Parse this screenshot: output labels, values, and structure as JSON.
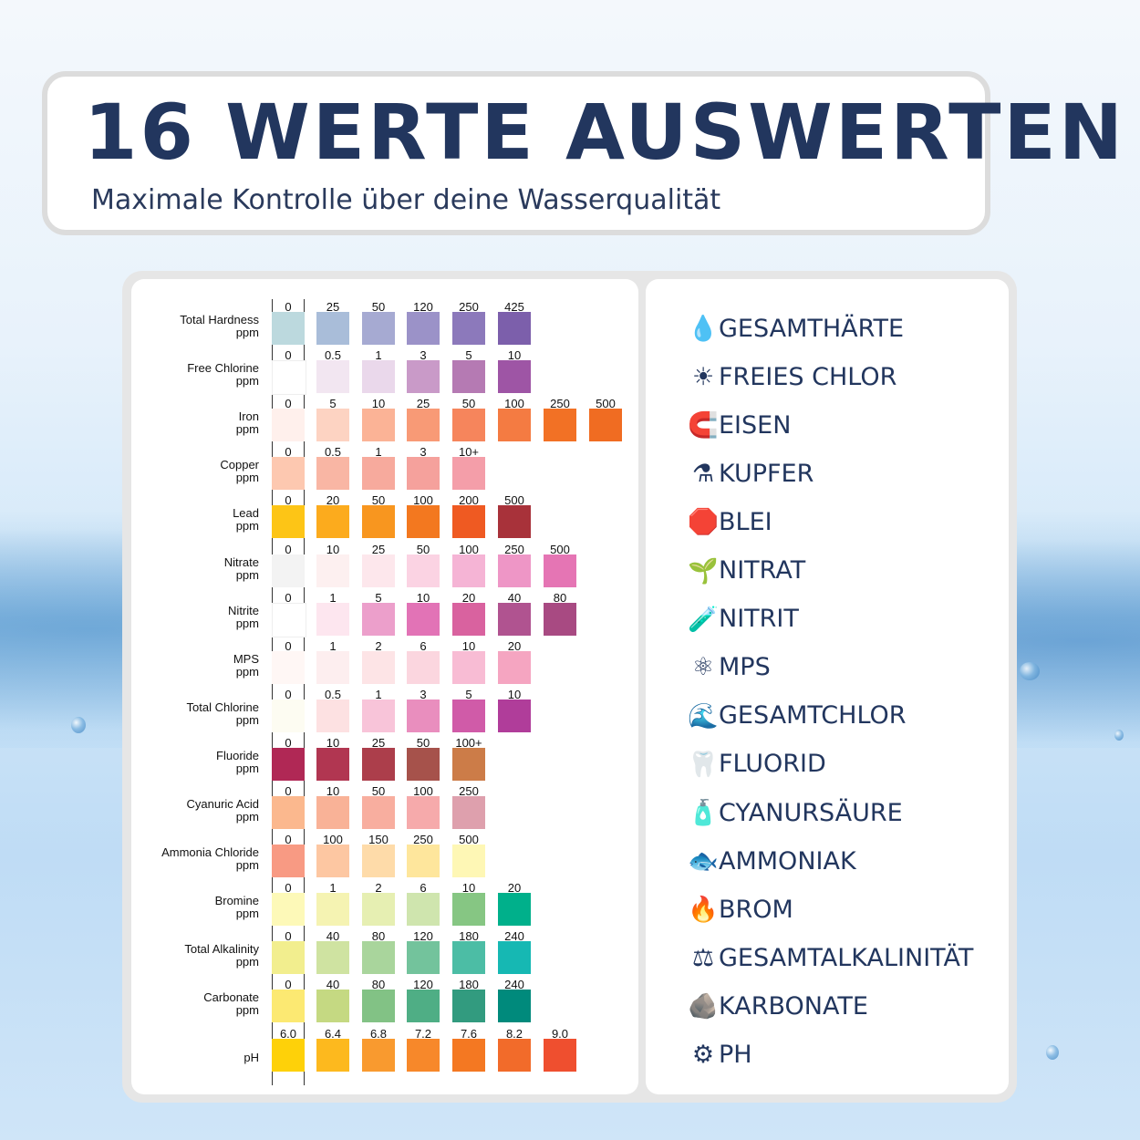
{
  "header": {
    "title": "16 WERTE AUSWERTEN",
    "subtitle": "Maximale Kontrolle über deine Wasserqualität"
  },
  "test_rows": [
    {
      "name": "Total Hardness",
      "unit": "ppm",
      "values": [
        "0",
        "25",
        "50",
        "120",
        "250",
        "425"
      ],
      "colors": [
        "#bcd9de",
        "#a9bdd9",
        "#a6aad2",
        "#9b92c8",
        "#8c79bb",
        "#7c5fab"
      ]
    },
    {
      "name": "Free Chlorine",
      "unit": "ppm",
      "values": [
        "0",
        "0.5",
        "1",
        "3",
        "5",
        "10"
      ],
      "colors": [
        "#ffffff",
        "#f2e6f1",
        "#ead8eb",
        "#c99ac8",
        "#b57ab3",
        "#9e55a5"
      ]
    },
    {
      "name": "Iron",
      "unit": "ppm",
      "values": [
        "0",
        "5",
        "10",
        "25",
        "50",
        "100",
        "250",
        "500"
      ],
      "colors": [
        "#fff0ec",
        "#fdd3c2",
        "#fbb396",
        "#f89a76",
        "#f6855c",
        "#f47b42",
        "#f27125",
        "#f06c22"
      ]
    },
    {
      "name": "Copper",
      "unit": "ppm",
      "values": [
        "0",
        "0.5",
        "1",
        "3",
        "10+"
      ],
      "colors": [
        "#fdc8b0",
        "#f9b6a4",
        "#f7aa9d",
        "#f5a19c",
        "#f49ea9"
      ]
    },
    {
      "name": "Lead",
      "unit": "ppm",
      "values": [
        "0",
        "20",
        "50",
        "100",
        "200",
        "500"
      ],
      "colors": [
        "#fdc516",
        "#fcab1d",
        "#f8961f",
        "#f3781f",
        "#ef5a22",
        "#a8323a"
      ]
    },
    {
      "name": "Nitrate",
      "unit": "ppm",
      "values": [
        "0",
        "10",
        "25",
        "50",
        "100",
        "250",
        "500"
      ],
      "colors": [
        "#f3f3f3",
        "#fdf0f0",
        "#fde7ec",
        "#fbd3e3",
        "#f5b4d5",
        "#ee96c6",
        "#e575b4"
      ]
    },
    {
      "name": "Nitrite",
      "unit": "ppm",
      "values": [
        "0",
        "1",
        "5",
        "10",
        "20",
        "40",
        "80"
      ],
      "colors": [
        "#ffffff",
        "#fde6ef",
        "#ec9fcb",
        "#e273b6",
        "#d9629f",
        "#b05390",
        "#a84a82"
      ]
    },
    {
      "name": "MPS",
      "unit": "ppm",
      "values": [
        "0",
        "1",
        "2",
        "6",
        "10",
        "20"
      ],
      "colors": [
        "#fff7f5",
        "#fdeeef",
        "#fde4e6",
        "#fbd6df",
        "#f8bcd4",
        "#f5a5c1"
      ]
    },
    {
      "name": "Total Chlorine",
      "unit": "ppm",
      "values": [
        "0",
        "0.5",
        "1",
        "3",
        "5",
        "10"
      ],
      "colors": [
        "#fdfcf2",
        "#fde1e2",
        "#f8c4d9",
        "#e98ebe",
        "#d05ba8",
        "#b03d9a"
      ]
    },
    {
      "name": "Fluoride",
      "unit": "ppm",
      "values": [
        "0",
        "10",
        "25",
        "50",
        "100+"
      ],
      "colors": [
        "#b02855",
        "#b13651",
        "#ac3e4b",
        "#a6524b",
        "#cc7c48"
      ]
    },
    {
      "name": "Cyanuric Acid",
      "unit": "ppm",
      "values": [
        "0",
        "10",
        "50",
        "100",
        "250"
      ],
      "colors": [
        "#fbb88e",
        "#f9b297",
        "#f8ae9f",
        "#f6aaab",
        "#dea0ad"
      ]
    },
    {
      "name": "Ammonia Chloride",
      "unit": "ppm",
      "values": [
        "0",
        "100",
        "150",
        "250",
        "500"
      ],
      "colors": [
        "#f89a83",
        "#fdc7a2",
        "#fedba9",
        "#fee69c",
        "#fef7b5"
      ]
    },
    {
      "name": "Bromine",
      "unit": "ppm",
      "values": [
        "0",
        "1",
        "2",
        "6",
        "10",
        "20"
      ],
      "colors": [
        "#fdf9b8",
        "#f5f3b2",
        "#e6efb2",
        "#cfe5ae",
        "#86c683",
        "#00b08b"
      ]
    },
    {
      "name": "Total Alkalinity",
      "unit": "ppm",
      "values": [
        "0",
        "40",
        "80",
        "120",
        "180",
        "240"
      ],
      "colors": [
        "#f2ee8e",
        "#cfe3a1",
        "#a9d59c",
        "#73c39c",
        "#4cbda5",
        "#16b8b3"
      ]
    },
    {
      "name": "Carbonate",
      "unit": "ppm",
      "values": [
        "0",
        "40",
        "80",
        "120",
        "180",
        "240"
      ],
      "colors": [
        "#fce972",
        "#c5d982",
        "#82c285",
        "#4fae85",
        "#329b7f",
        "#008a7c"
      ]
    },
    {
      "name": "pH",
      "unit": "",
      "values": [
        "6.0",
        "6.4",
        "6.8",
        "7.2",
        "7.6",
        "8.2",
        "9.0"
      ],
      "colors": [
        "#fed109",
        "#fdb91e",
        "#f99a2f",
        "#f7882a",
        "#f47822",
        "#f26b2a",
        "#ef4f2f"
      ]
    }
  ],
  "legend": [
    {
      "icon": "water-drop-icon",
      "glyph": "💧",
      "label": "GESAMTHÄRTE"
    },
    {
      "icon": "sun-icon",
      "glyph": "☀",
      "label": "FREIES CHLOR"
    },
    {
      "icon": "magnet-icon",
      "glyph": "🧲",
      "label": "EISEN"
    },
    {
      "icon": "lab-flask-icon",
      "glyph": "⚗",
      "label": "KUPFER"
    },
    {
      "icon": "stop-sign-icon",
      "glyph": "🛑",
      "label": "BLEI"
    },
    {
      "icon": "seedling-icon",
      "glyph": "🌱",
      "label": "NITRAT"
    },
    {
      "icon": "test-tube-icon",
      "glyph": "🧪",
      "label": "NITRIT"
    },
    {
      "icon": "atom-icon",
      "glyph": "⚛",
      "label": " MPS"
    },
    {
      "icon": "wave-icon",
      "glyph": "🌊",
      "label": " GESAMTCHLOR"
    },
    {
      "icon": "tooth-icon",
      "glyph": "🦷",
      "label": " FLUORID"
    },
    {
      "icon": "lotion-bottle-icon",
      "glyph": "🧴",
      "label": "CYANURSÄURE"
    },
    {
      "icon": "fish-icon",
      "glyph": "🐟",
      "label": " AMMONIAK"
    },
    {
      "icon": "fire-icon",
      "glyph": "🔥",
      "label": "BROM"
    },
    {
      "icon": "balance-scale-icon",
      "glyph": "⚖",
      "label": " GESAMTALKALINITÄT"
    },
    {
      "icon": "rock-icon",
      "glyph": "🪨",
      "label": " KARBONATE"
    },
    {
      "icon": "gear-icon",
      "glyph": "⚙",
      "label": " PH"
    }
  ]
}
